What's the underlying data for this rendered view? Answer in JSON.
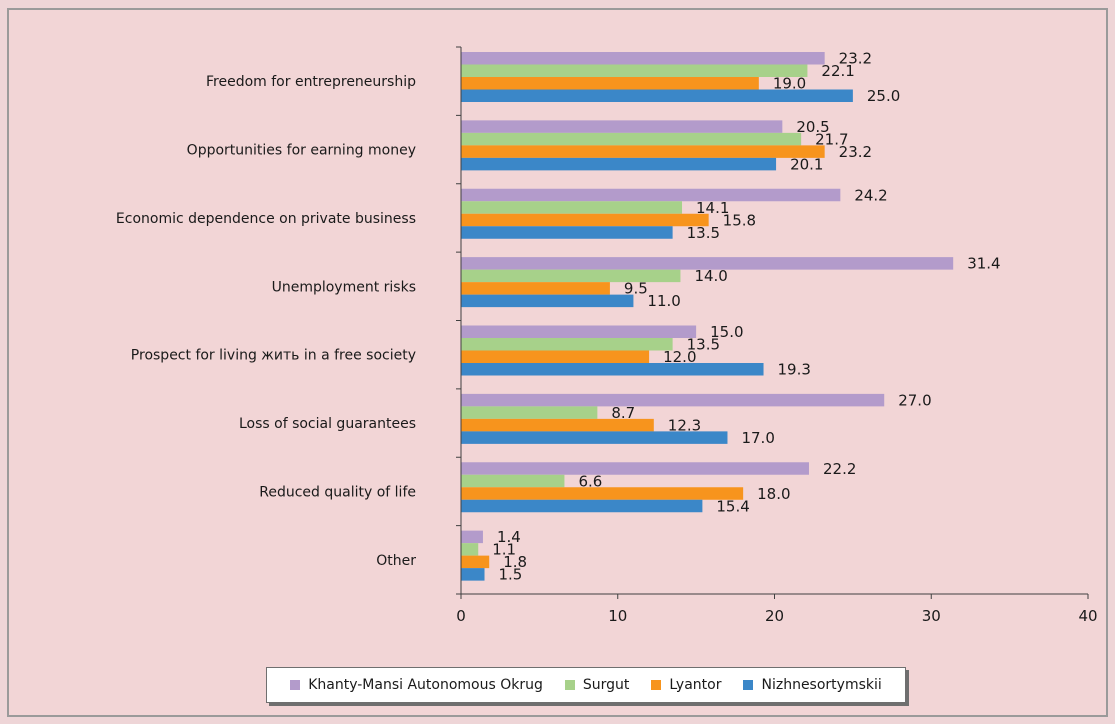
{
  "chart_data": {
    "type": "bar",
    "orientation": "horizontal",
    "categories": [
      "Freedom for entrepreneurship",
      "Opportunities for earning money",
      "Economic dependence on private business",
      "Unemployment risks",
      "Prospect for living жить in a free society",
      "Loss of  social guarantees",
      "Reduced quality of life",
      "Other"
    ],
    "series": [
      {
        "name": "Khanty-Mansi Autonomous Okrug",
        "color": "#b39bcb",
        "values": [
          23.2,
          20.5,
          24.2,
          31.4,
          15.0,
          27.0,
          22.2,
          1.4
        ]
      },
      {
        "name": "Surgut",
        "color": "#a7d18a",
        "values": [
          22.1,
          21.7,
          14.1,
          14.0,
          13.5,
          8.7,
          6.6,
          1.1
        ]
      },
      {
        "name": "Lyantor",
        "color": "#f7941d",
        "values": [
          19.0,
          23.2,
          15.8,
          9.5,
          12.0,
          12.3,
          18.0,
          1.8
        ]
      },
      {
        "name": "Nizhnesortymskii",
        "color": "#3b87c8",
        "values": [
          25.0,
          20.1,
          13.5,
          11.0,
          19.3,
          17.0,
          15.4,
          1.5
        ]
      }
    ],
    "xlim": [
      0,
      40
    ],
    "xticks": [
      0,
      10,
      20,
      30,
      40
    ],
    "legend_position": "bottom",
    "grid": false
  }
}
